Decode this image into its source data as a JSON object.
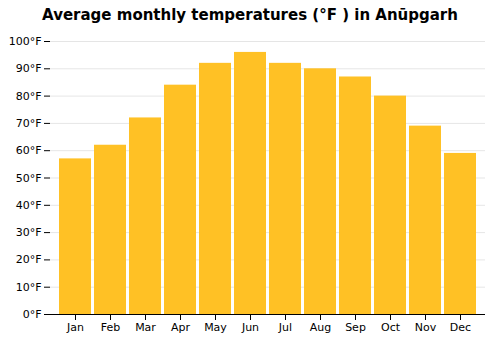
{
  "chart_data": {
    "type": "bar",
    "title": "Average monthly temperatures (°F ) in Anūpgarh",
    "categories": [
      "Jan",
      "Feb",
      "Mar",
      "Apr",
      "May",
      "Jun",
      "Jul",
      "Aug",
      "Sep",
      "Oct",
      "Nov",
      "Dec"
    ],
    "values": [
      57,
      62,
      72,
      84,
      92,
      96,
      92,
      90,
      87,
      80,
      69,
      59
    ],
    "color": "#FFC125",
    "ylim": [
      0,
      100
    ],
    "yticks": [
      {
        "value": 0,
        "label": "0°F"
      },
      {
        "value": 10,
        "label": "10°F"
      },
      {
        "value": 20,
        "label": "20°F"
      },
      {
        "value": 30,
        "label": "30°F"
      },
      {
        "value": 40,
        "label": "40°F"
      },
      {
        "value": 50,
        "label": "50°F"
      },
      {
        "value": 60,
        "label": "60°F"
      },
      {
        "value": 70,
        "label": "70°F"
      },
      {
        "value": 80,
        "label": "80°F"
      },
      {
        "value": 90,
        "label": "90°F"
      },
      {
        "value": 100,
        "label": "100°F"
      }
    ],
    "grid": true
  }
}
